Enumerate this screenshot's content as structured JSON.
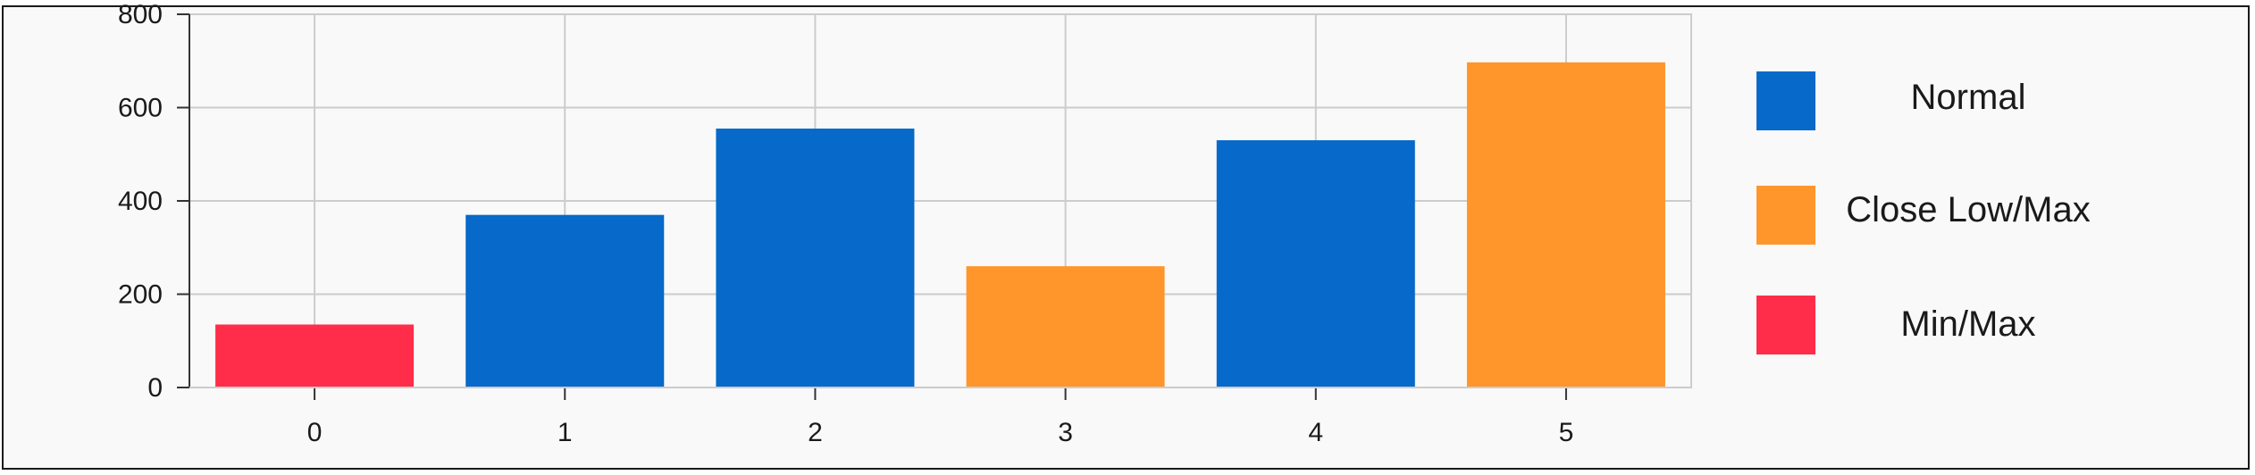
{
  "chart_data": {
    "type": "bar",
    "categories": [
      "0",
      "1",
      "2",
      "3",
      "4",
      "5"
    ],
    "values": [
      135,
      370,
      555,
      260,
      530,
      697
    ],
    "bar_status": [
      "Min/Max",
      "Normal",
      "Normal",
      "Close Low/Max",
      "Normal",
      "Close Low/Max"
    ],
    "ylim": [
      0,
      800
    ],
    "yticks": [
      0,
      200,
      400,
      600,
      800
    ],
    "grid": true,
    "legend_position": "right",
    "legend": [
      {
        "label": "Normal",
        "color": "#0769C9"
      },
      {
        "label": "Close Low/Max",
        "color": "#FF962B"
      },
      {
        "label": "Min/Max",
        "color": "#FF2D4A"
      }
    ]
  }
}
